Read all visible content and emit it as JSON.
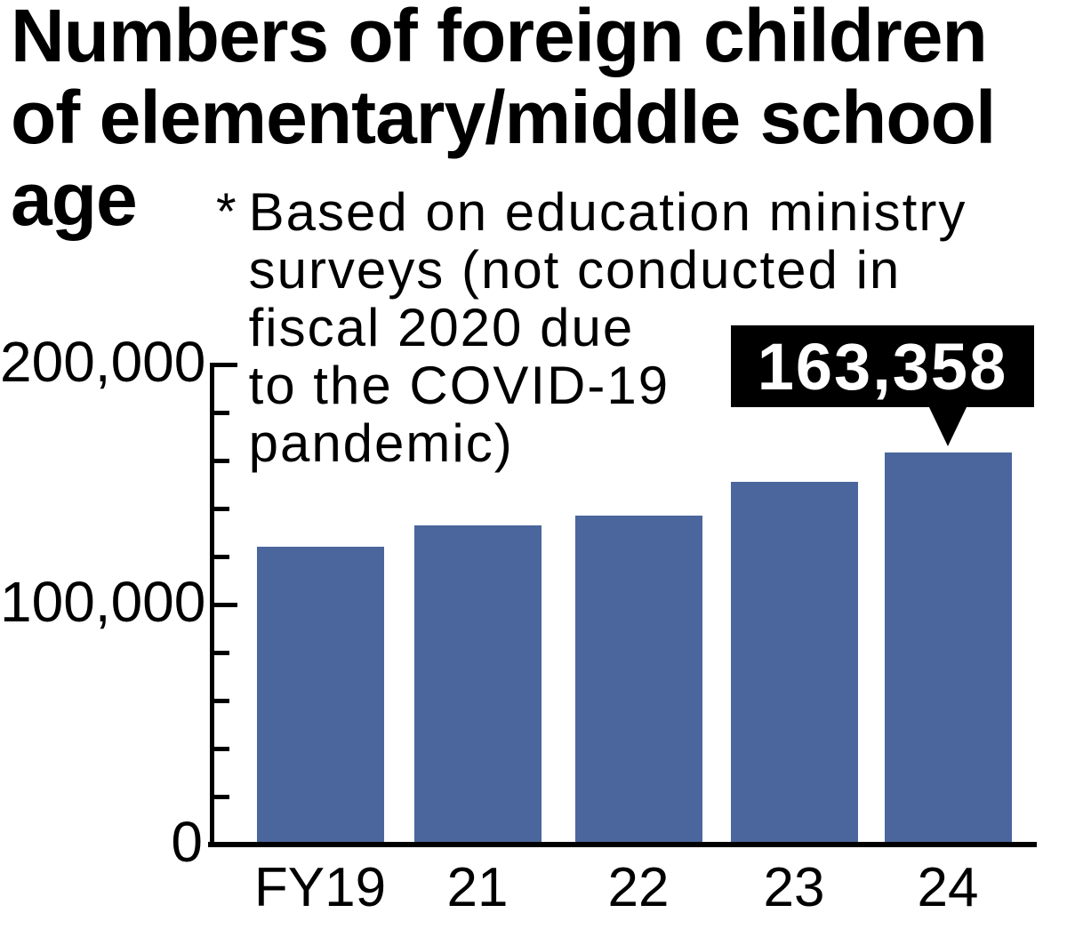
{
  "title": {
    "full": "Numbers of foreign children of elementary/middle school age",
    "lines": [
      "Numbers of foreign children",
      "of elementary/middle school",
      "age"
    ]
  },
  "note": {
    "marker": "*",
    "full": "Based on education ministry surveys (not conducted in fiscal 2020 due to the COVID-19 pandemic)",
    "lines": [
      "Based on education ministry",
      "surveys (not conducted in",
      "fiscal 2020 due",
      "to the COVID-19",
      "pandemic)"
    ]
  },
  "callout": {
    "value": "163,358",
    "target_category": "24"
  },
  "colors": {
    "bar": "#4a669c",
    "axis": "#000000",
    "callout_bg": "#000000",
    "callout_text": "#ffffff",
    "text": "#000000",
    "background": "#ffffff"
  },
  "chart_data": {
    "type": "bar",
    "title": "Numbers of foreign children of elementary/middle school age",
    "xlabel": "",
    "ylabel": "",
    "categories": [
      "FY19",
      "21",
      "22",
      "23",
      "24"
    ],
    "values": [
      124000,
      133000,
      137000,
      151000,
      163358
    ],
    "ylim": [
      0,
      200000
    ],
    "ytick_step": 20000,
    "ytick_labels": [
      {
        "value": 0,
        "label": "0"
      },
      {
        "value": 100000,
        "label": "100,000"
      },
      {
        "value": 200000,
        "label": "200,000"
      }
    ],
    "grid": false,
    "legend": "none",
    "annotation": {
      "category": "24",
      "text": "163,358"
    },
    "note": "Based on education ministry surveys (not conducted in fiscal 2020 due to the COVID-19 pandemic)"
  }
}
